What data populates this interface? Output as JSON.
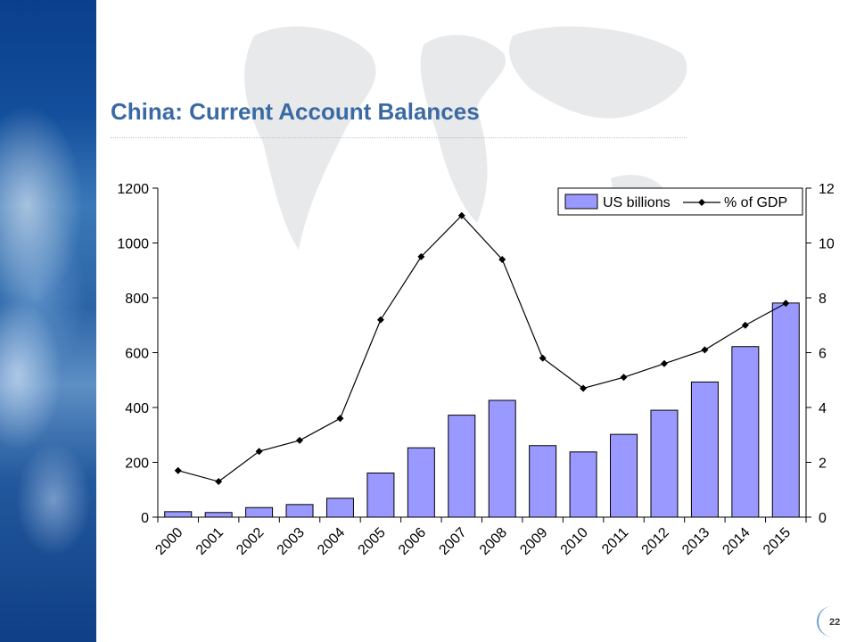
{
  "slide": {
    "title": "China: Current Account Balances",
    "page_number": "22"
  },
  "colors": {
    "bar_fill": "#9999ff",
    "bar_stroke": "#000000",
    "line": "#000000",
    "title": "#3a6aa4"
  },
  "chart_data": {
    "type": "bar",
    "title": "",
    "xlabel": "",
    "ylabel": "",
    "y2label": "",
    "categories": [
      "2000",
      "2001",
      "2002",
      "2003",
      "2004",
      "2005",
      "2006",
      "2007",
      "2008",
      "2009",
      "2010",
      "2011",
      "2012",
      "2013",
      "2014",
      "2015"
    ],
    "ylim": [
      0,
      1200
    ],
    "y_ticks": [
      0,
      200,
      400,
      600,
      800,
      1000,
      1200
    ],
    "y2lim": [
      0,
      12
    ],
    "y2_ticks": [
      0,
      2,
      4,
      6,
      8,
      10,
      12
    ],
    "grid": false,
    "legend_position": "top-right",
    "series": [
      {
        "name": "US billions",
        "type": "bar",
        "axis": "left",
        "values": [
          20,
          17,
          35,
          46,
          69,
          161,
          253,
          372,
          426,
          261,
          238,
          302,
          390,
          493,
          622,
          781
        ]
      },
      {
        "name": "% of GDP",
        "type": "line",
        "axis": "right",
        "marker": "diamond",
        "values": [
          1.7,
          1.3,
          2.4,
          2.8,
          3.6,
          7.2,
          9.5,
          11.0,
          9.4,
          5.8,
          4.7,
          5.1,
          5.6,
          6.1,
          7.0,
          7.8
        ]
      }
    ]
  }
}
